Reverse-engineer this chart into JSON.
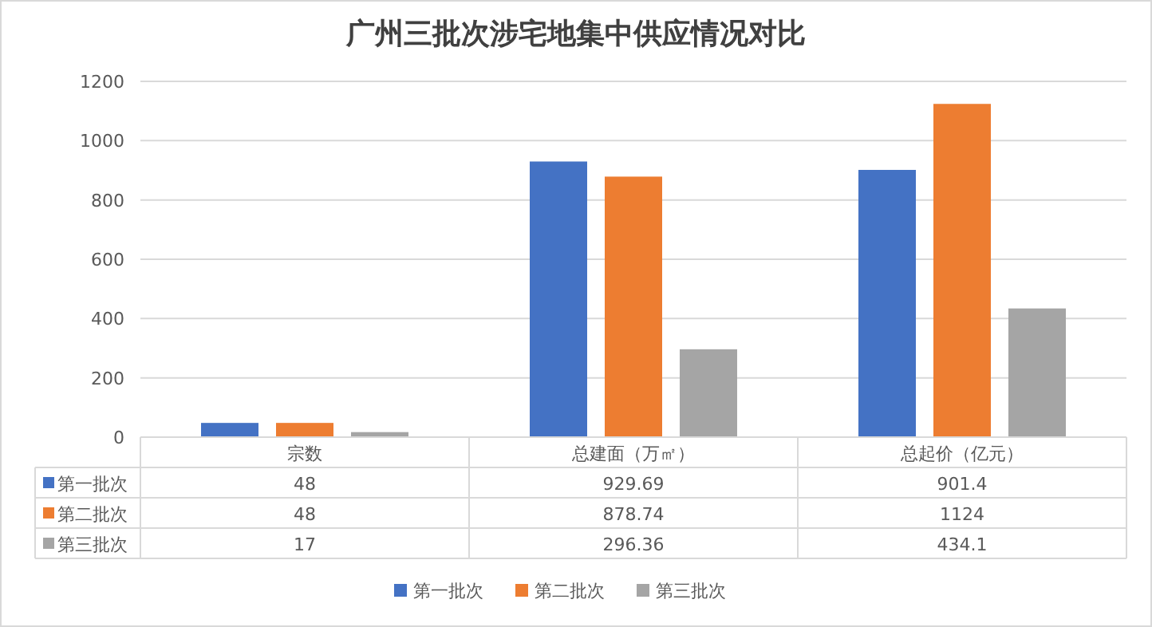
{
  "chart_data": {
    "type": "bar",
    "title": "广州三批次涉宅地集中供应情况对比",
    "categories": [
      "宗数",
      "总建面（万㎡）",
      "总起价（亿元）"
    ],
    "series": [
      {
        "name": "第一批次",
        "color": "#4472c4",
        "values": [
          48,
          929.69,
          901.4
        ]
      },
      {
        "name": "第二批次",
        "color": "#ed7d31",
        "values": [
          48,
          878.74,
          1124
        ]
      },
      {
        "name": "第三批次",
        "color": "#a5a5a5",
        "values": [
          17,
          296.36,
          434.1
        ]
      }
    ],
    "ylim": [
      0,
      1200
    ],
    "yticks": [
      0,
      200,
      400,
      600,
      800,
      1000,
      1200
    ],
    "grid": "y",
    "legend": "bottom",
    "data_labels": true
  }
}
